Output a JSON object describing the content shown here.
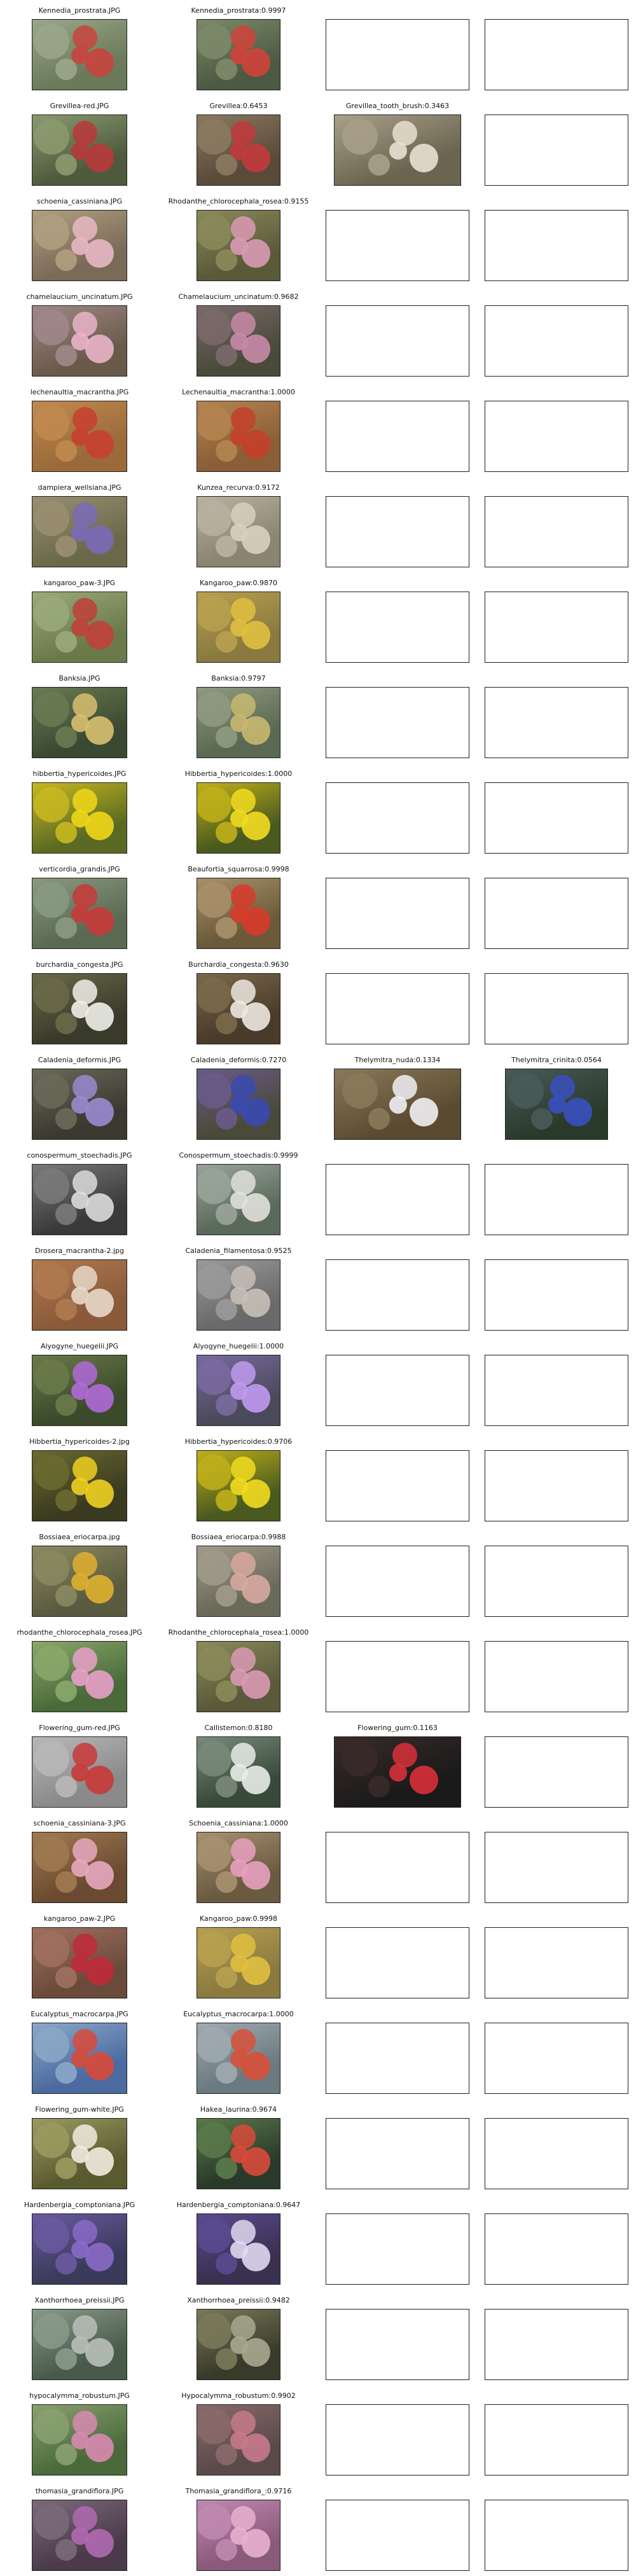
{
  "rows": [
    {
      "cells": [
        {
          "title": "Kennedia_prostrata.JPG",
          "colors": [
            "#6b7a5a",
            "#9aa78a",
            "#c8443e"
          ]
        },
        {
          "title": "Kennedia_prostrata:0.9997",
          "colors": [
            "#4d5a42",
            "#7c8a6a",
            "#d0433a"
          ]
        },
        null,
        null
      ]
    },
    {
      "cells": [
        {
          "title": "Grevillea-red.JPG",
          "colors": [
            "#4e5a3e",
            "#8b9a6e",
            "#b8383a"
          ]
        },
        {
          "title": "Grevillea:0.6453",
          "colors": [
            "#5a4a3a",
            "#8a7a60",
            "#c23a3c"
          ]
        },
        {
          "title": "Grevillea_tooth_brush:0.3463",
          "colors": [
            "#6a6450",
            "#a9a08a",
            "#e8e0d0"
          ]
        },
        null
      ]
    },
    {
      "cells": [
        {
          "title": "schoenia_cassiniana.JPG",
          "colors": [
            "#7a6a58",
            "#b0a080",
            "#e7b8c4"
          ]
        },
        {
          "title": "Rhodanthe_chlorocephala_rosea:0.9155",
          "colors": [
            "#5a5a3a",
            "#8a8a5a",
            "#d99ab4"
          ]
        },
        null,
        null
      ]
    },
    {
      "cells": [
        {
          "title": "chamelaucium_uncinatum.JPG",
          "colors": [
            "#6a5a4a",
            "#a08888",
            "#e9b4c8"
          ]
        },
        {
          "title": "Chamelaucium_uncinatum:0.9682",
          "colors": [
            "#4a4a3a",
            "#7a6a6a",
            "#c98aa8"
          ]
        },
        null,
        null
      ]
    },
    {
      "cells": [
        {
          "title": "lechenaultia_macrantha.JPG",
          "colors": [
            "#9a6a3a",
            "#c08a50",
            "#c8402e"
          ]
        },
        {
          "title": "Lechenaultia_macrantha:1.0000",
          "colors": [
            "#8a5e36",
            "#b48450",
            "#c4402a"
          ]
        },
        null,
        null
      ]
    },
    {
      "cells": [
        {
          "title": "dampiera_wellsiana.JPG",
          "colors": [
            "#6a6a4a",
            "#9a8e70",
            "#7a6ab8"
          ]
        },
        {
          "title": "Kunzea_recurva:0.9172",
          "colors": [
            "#8a8470",
            "#b8b2a0",
            "#d8d0c0"
          ]
        },
        null,
        null
      ]
    },
    {
      "cells": [
        {
          "title": "kangaroo_paw-3.JPG",
          "colors": [
            "#6a7a4a",
            "#9aaa7a",
            "#c0403a"
          ]
        },
        {
          "title": "Kangaroo_paw:0.9870",
          "colors": [
            "#8a7a40",
            "#b8a050",
            "#e0c040"
          ]
        },
        null,
        null
      ]
    },
    {
      "cells": [
        {
          "title": "Banksia.JPG",
          "colors": [
            "#3a4a32",
            "#6a7a52",
            "#d8c070"
          ]
        },
        {
          "title": "Banksia:0.9797",
          "colors": [
            "#5a6a52",
            "#909a80",
            "#c8b870"
          ]
        },
        null,
        null
      ]
    },
    {
      "cells": [
        {
          "title": "hibbertia_hypericoides.JPG",
          "colors": [
            "#5a6a22",
            "#c8b820",
            "#f0d818"
          ]
        },
        {
          "title": "Hibbertia_hypericoides:1.0000",
          "colors": [
            "#4a5a1e",
            "#c0b01a",
            "#f2dc20"
          ]
        },
        null,
        null
      ]
    },
    {
      "cells": [
        {
          "title": "verticordia_grandis.JPG",
          "colors": [
            "#5a6a52",
            "#8a9a82",
            "#c83a3a"
          ]
        },
        {
          "title": "Beaufortia_squarrosa:0.9998",
          "colors": [
            "#6a5a3a",
            "#a8906a",
            "#d83a2a"
          ]
        },
        null,
        null
      ]
    },
    {
      "cells": [
        {
          "title": "burchardia_congesta.JPG",
          "colors": [
            "#3a3a2a",
            "#6a6a4a",
            "#f0f0ea"
          ]
        },
        {
          "title": "Burchardia_congesta:0.9630",
          "colors": [
            "#4a3a2a",
            "#7a6a4a",
            "#ece8e0"
          ]
        },
        null,
        null
      ]
    },
    {
      "cells": [
        {
          "title": "Caladenia_deformis.JPG",
          "colors": [
            "#3a3a30",
            "#6a6a5a",
            "#9a8ad0"
          ]
        },
        {
          "title": "Caladenia_deformis:0.7270",
          "colors": [
            "#4a4a3a",
            "#6a5a8a",
            "#3a4ab0"
          ]
        },
        {
          "title": "Thelymitra_nuda:0.1334",
          "colors": [
            "#5a4a30",
            "#8a7a5a",
            "#f2f0f4"
          ]
        },
        {
          "title": "Thelymitra_crinita:0.0564",
          "colors": [
            "#2a3a2a",
            "#4a5a5a",
            "#3a50c0"
          ]
        }
      ]
    },
    {
      "cells": [
        {
          "title": "conospermum_stoechadis.JPG",
          "colors": [
            "#3a3a3a",
            "#7a7a7a",
            "#dcdcdc"
          ]
        },
        {
          "title": "Conospermum_stoechadis:0.9999",
          "colors": [
            "#5a6a5a",
            "#9aa49a",
            "#e0e0dc"
          ]
        },
        null,
        null
      ]
    },
    {
      "cells": [
        {
          "title": "Drosera_macrantha-2.jpg",
          "colors": [
            "#8a5a3a",
            "#b07a50",
            "#e8d8c8"
          ]
        },
        {
          "title": "Caladenia_filamentosa:0.9525",
          "colors": [
            "#6a6a6a",
            "#9a9a9a",
            "#c8c0b8"
          ]
        },
        null,
        null
      ]
    },
    {
      "cells": [
        {
          "title": "Alyogyne_huegelii.JPG",
          "colors": [
            "#3a4a2a",
            "#6a7a4a",
            "#b06ad8"
          ]
        },
        {
          "title": "Alyogyne_huegelii:1.0000",
          "colors": [
            "#4a4a5a",
            "#7a6aa0",
            "#c09af0"
          ]
        },
        null,
        null
      ]
    },
    {
      "cells": [
        {
          "title": "Hibbertia_hypericoides-2.jpg",
          "colors": [
            "#3a3a20",
            "#6a6a30",
            "#f0d020"
          ]
        },
        {
          "title": "Hibbertia_hypericoides:0.9706",
          "colors": [
            "#4a5a1e",
            "#c0b01a",
            "#f2dc20"
          ]
        },
        null,
        null
      ]
    },
    {
      "cells": [
        {
          "title": "Bossiaea_eriocarpa.jpg",
          "colors": [
            "#5a5a40",
            "#8a8a60",
            "#e0b030"
          ]
        },
        {
          "title": "Bossiaea_eriocarpa:0.9988",
          "colors": [
            "#6a6a5a",
            "#a09a8a",
            "#d8a8a0"
          ]
        },
        null,
        null
      ]
    },
    {
      "cells": [
        {
          "title": "rhodanthe_chlorocephala_rosea.JPG",
          "colors": [
            "#4a6a3a",
            "#8aa86a",
            "#e8a0c8"
          ]
        },
        {
          "title": "Rhodanthe_chlorocephala_rosea:1.0000",
          "colors": [
            "#5a5a3a",
            "#8a8a5a",
            "#d99ab4"
          ]
        },
        null,
        null
      ]
    },
    {
      "cells": [
        {
          "title": "Flowering_gum-red.JPG",
          "colors": [
            "#8a8a8a",
            "#b8b8b8",
            "#c83a3a"
          ]
        },
        {
          "title": "Callistemon:0.8180",
          "colors": [
            "#3a4a3a",
            "#7a8a7a",
            "#e8ece8"
          ]
        },
        {
          "title": "Flowering_gum:0.1163",
          "colors": [
            "#1a1a1a",
            "#3a2a2a",
            "#d8303a"
          ]
        },
        null
      ]
    },
    {
      "cells": [
        {
          "title": "schoenia_cassiniana-3.JPG",
          "colors": [
            "#6a4a30",
            "#a07a50",
            "#e8a8c0"
          ]
        },
        {
          "title": "Schoenia_cassiniana:1.0000",
          "colors": [
            "#6a5a40",
            "#a89070",
            "#e8a0c0"
          ]
        },
        null,
        null
      ]
    },
    {
      "cells": [
        {
          "title": "kangaroo_paw-2.JPG",
          "colors": [
            "#6a4a3a",
            "#a07060",
            "#c02a3a"
          ]
        },
        {
          "title": "Kangaroo_paw:0.9998",
          "colors": [
            "#8a7a40",
            "#b8a050",
            "#e0c040"
          ]
        },
        null,
        null
      ]
    },
    {
      "cells": [
        {
          "title": "Eucalyptus_macrocarpa.JPG",
          "colors": [
            "#4a6aa0",
            "#8aa8c8",
            "#d84a3a"
          ]
        },
        {
          "title": "Eucalyptus_macrocarpa:1.0000",
          "colors": [
            "#6a7a80",
            "#a0aab0",
            "#d8503a"
          ]
        },
        null,
        null
      ]
    },
    {
      "cells": [
        {
          "title": "Flowering_gum-white.JPG",
          "colors": [
            "#5a5a30",
            "#9a9a60",
            "#f0ece0"
          ]
        },
        {
          "title": "Hakea_laurina:0.9674",
          "colors": [
            "#2a3a2a",
            "#5a7a4a",
            "#d84a3a"
          ]
        },
        null,
        null
      ]
    },
    {
      "cells": [
        {
          "title": "Hardenbergia_comptoniana.JPG",
          "colors": [
            "#3a3a5a",
            "#6a5aa0",
            "#8a6ac8"
          ]
        },
        {
          "title": "Hardenbergia_comptoniana:0.9647",
          "colors": [
            "#3a3050",
            "#5a4a90",
            "#e0d8f0"
          ]
        },
        null,
        null
      ]
    },
    {
      "cells": [
        {
          "title": "Xanthorrhoea_preissii.JPG",
          "colors": [
            "#4a5a4a",
            "#8a9a8a",
            "#b8c0b8"
          ]
        },
        {
          "title": "Xanthorrhoea_preissii:0.9482",
          "colors": [
            "#3a3a2a",
            "#7a7a5a",
            "#a8a890"
          ]
        },
        null,
        null
      ]
    },
    {
      "cells": [
        {
          "title": "hypocalymma_robustum.JPG",
          "colors": [
            "#4a6a3a",
            "#8aa070",
            "#d88ab0"
          ]
        },
        {
          "title": "Hypocalymma_robustum:0.9902",
          "colors": [
            "#5a4a4a",
            "#8a6a6a",
            "#c87a8a"
          ]
        },
        null,
        null
      ]
    },
    {
      "cells": [
        {
          "title": "thomasia_grandiflora.JPG",
          "colors": [
            "#4a3a4a",
            "#7a6a7a",
            "#b06ab0"
          ]
        },
        {
          "title": "Thomasia_grandiflora_:0.9716",
          "colors": [
            "#8a5a7a",
            "#c08ab0",
            "#e8b0d0"
          ]
        },
        null,
        null
      ]
    }
  ]
}
